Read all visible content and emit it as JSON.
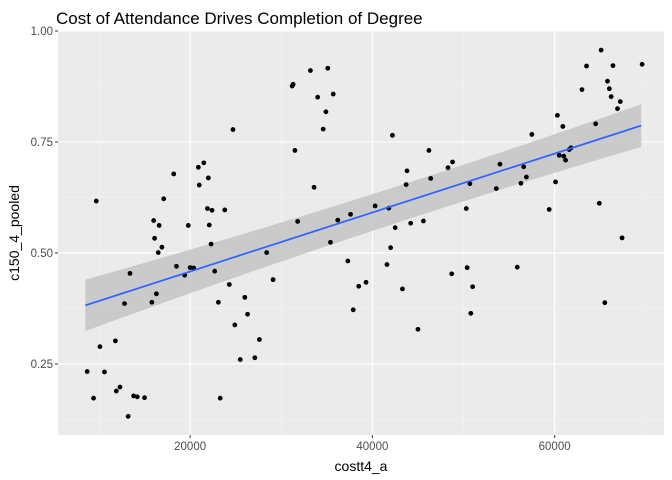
{
  "chart_data": {
    "type": "scatter",
    "title": "Cost of Attendance Drives Completion of Degree",
    "xlabel": "costt4_a",
    "ylabel": "c150_4_pooled",
    "xlim": [
      5500,
      72000
    ],
    "ylim": [
      0.09,
      1.0
    ],
    "x_ticks": [
      20000,
      40000,
      60000
    ],
    "x_tick_labels": [
      "20000",
      "40000",
      "60000"
    ],
    "y_ticks": [
      0.25,
      0.5,
      0.75,
      1.0
    ],
    "y_tick_labels": [
      "0.25",
      "0.50",
      "0.75",
      "1.00"
    ],
    "grid": true,
    "legend": "none",
    "colors": {
      "panel": "#ebebeb",
      "grid_major": "#ffffff",
      "grid_minor": "#f4f4f4",
      "point": "#000000",
      "trend_line": "#3366ff",
      "confidence_band": "#c4c4c4"
    },
    "points": [
      [
        8700,
        0.233
      ],
      [
        9400,
        0.173
      ],
      [
        9700,
        0.617
      ],
      [
        10100,
        0.289
      ],
      [
        10600,
        0.232
      ],
      [
        11800,
        0.302
      ],
      [
        11900,
        0.189
      ],
      [
        12300,
        0.198
      ],
      [
        12800,
        0.386
      ],
      [
        13200,
        0.132
      ],
      [
        13400,
        0.454
      ],
      [
        13800,
        0.178
      ],
      [
        14200,
        0.176
      ],
      [
        15000,
        0.174
      ],
      [
        15800,
        0.389
      ],
      [
        16000,
        0.573
      ],
      [
        16100,
        0.533
      ],
      [
        16300,
        0.408
      ],
      [
        16500,
        0.501
      ],
      [
        16600,
        0.562
      ],
      [
        16900,
        0.513
      ],
      [
        17100,
        0.622
      ],
      [
        18200,
        0.678
      ],
      [
        18500,
        0.47
      ],
      [
        19400,
        0.45
      ],
      [
        19800,
        0.562
      ],
      [
        20000,
        0.467
      ],
      [
        20400,
        0.466
      ],
      [
        20900,
        0.693
      ],
      [
        21000,
        0.653
      ],
      [
        21500,
        0.703
      ],
      [
        21900,
        0.6
      ],
      [
        22000,
        0.669
      ],
      [
        22100,
        0.563
      ],
      [
        22300,
        0.52
      ],
      [
        22400,
        0.596
      ],
      [
        22700,
        0.459
      ],
      [
        23100,
        0.389
      ],
      [
        23300,
        0.173
      ],
      [
        23800,
        0.597
      ],
      [
        24300,
        0.429
      ],
      [
        24700,
        0.778
      ],
      [
        24900,
        0.338
      ],
      [
        25500,
        0.26
      ],
      [
        26000,
        0.4
      ],
      [
        26300,
        0.362
      ],
      [
        27100,
        0.264
      ],
      [
        27600,
        0.305
      ],
      [
        28400,
        0.501
      ],
      [
        29100,
        0.44
      ],
      [
        31200,
        0.876
      ],
      [
        31300,
        0.88
      ],
      [
        31500,
        0.731
      ],
      [
        31800,
        0.571
      ],
      [
        33200,
        0.911
      ],
      [
        33600,
        0.648
      ],
      [
        34000,
        0.851
      ],
      [
        34600,
        0.779
      ],
      [
        34900,
        0.818
      ],
      [
        35100,
        0.916
      ],
      [
        35400,
        0.524
      ],
      [
        35700,
        0.858
      ],
      [
        36200,
        0.574
      ],
      [
        37300,
        0.482
      ],
      [
        37600,
        0.587
      ],
      [
        37900,
        0.372
      ],
      [
        38500,
        0.425
      ],
      [
        39300,
        0.434
      ],
      [
        40300,
        0.606
      ],
      [
        41600,
        0.474
      ],
      [
        41800,
        0.601
      ],
      [
        42000,
        0.512
      ],
      [
        42200,
        0.765
      ],
      [
        42500,
        0.557
      ],
      [
        43300,
        0.419
      ],
      [
        43800,
        0.685
      ],
      [
        43700,
        0.654
      ],
      [
        44200,
        0.567
      ],
      [
        45000,
        0.328
      ],
      [
        45600,
        0.572
      ],
      [
        46200,
        0.731
      ],
      [
        46400,
        0.668
      ],
      [
        48300,
        0.692
      ],
      [
        48700,
        0.453
      ],
      [
        48800,
        0.705
      ],
      [
        50300,
        0.6
      ],
      [
        50400,
        0.467
      ],
      [
        50700,
        0.656
      ],
      [
        50800,
        0.364
      ],
      [
        51000,
        0.424
      ],
      [
        53600,
        0.645
      ],
      [
        54000,
        0.7
      ],
      [
        55900,
        0.468
      ],
      [
        56600,
        0.694
      ],
      [
        56300,
        0.657
      ],
      [
        56900,
        0.671
      ],
      [
        57500,
        0.767
      ],
      [
        59400,
        0.598
      ],
      [
        60100,
        0.66
      ],
      [
        60300,
        0.81
      ],
      [
        60500,
        0.72
      ],
      [
        60900,
        0.785
      ],
      [
        61000,
        0.718
      ],
      [
        61200,
        0.709
      ],
      [
        61600,
        0.733
      ],
      [
        61800,
        0.737
      ],
      [
        63000,
        0.868
      ],
      [
        63500,
        0.921
      ],
      [
        64500,
        0.791
      ],
      [
        64900,
        0.612
      ],
      [
        65100,
        0.957
      ],
      [
        65500,
        0.388
      ],
      [
        65800,
        0.887
      ],
      [
        66000,
        0.87
      ],
      [
        66200,
        0.852
      ],
      [
        66400,
        0.922
      ],
      [
        66900,
        0.825
      ],
      [
        67200,
        0.841
      ],
      [
        67400,
        0.534
      ],
      [
        69600,
        0.925
      ]
    ],
    "trend": {
      "x": [
        8500,
        69500
      ],
      "y": [
        0.382,
        0.787
      ],
      "ci_half_width": [
        0.058,
        0.03,
        0.048
      ]
    }
  }
}
